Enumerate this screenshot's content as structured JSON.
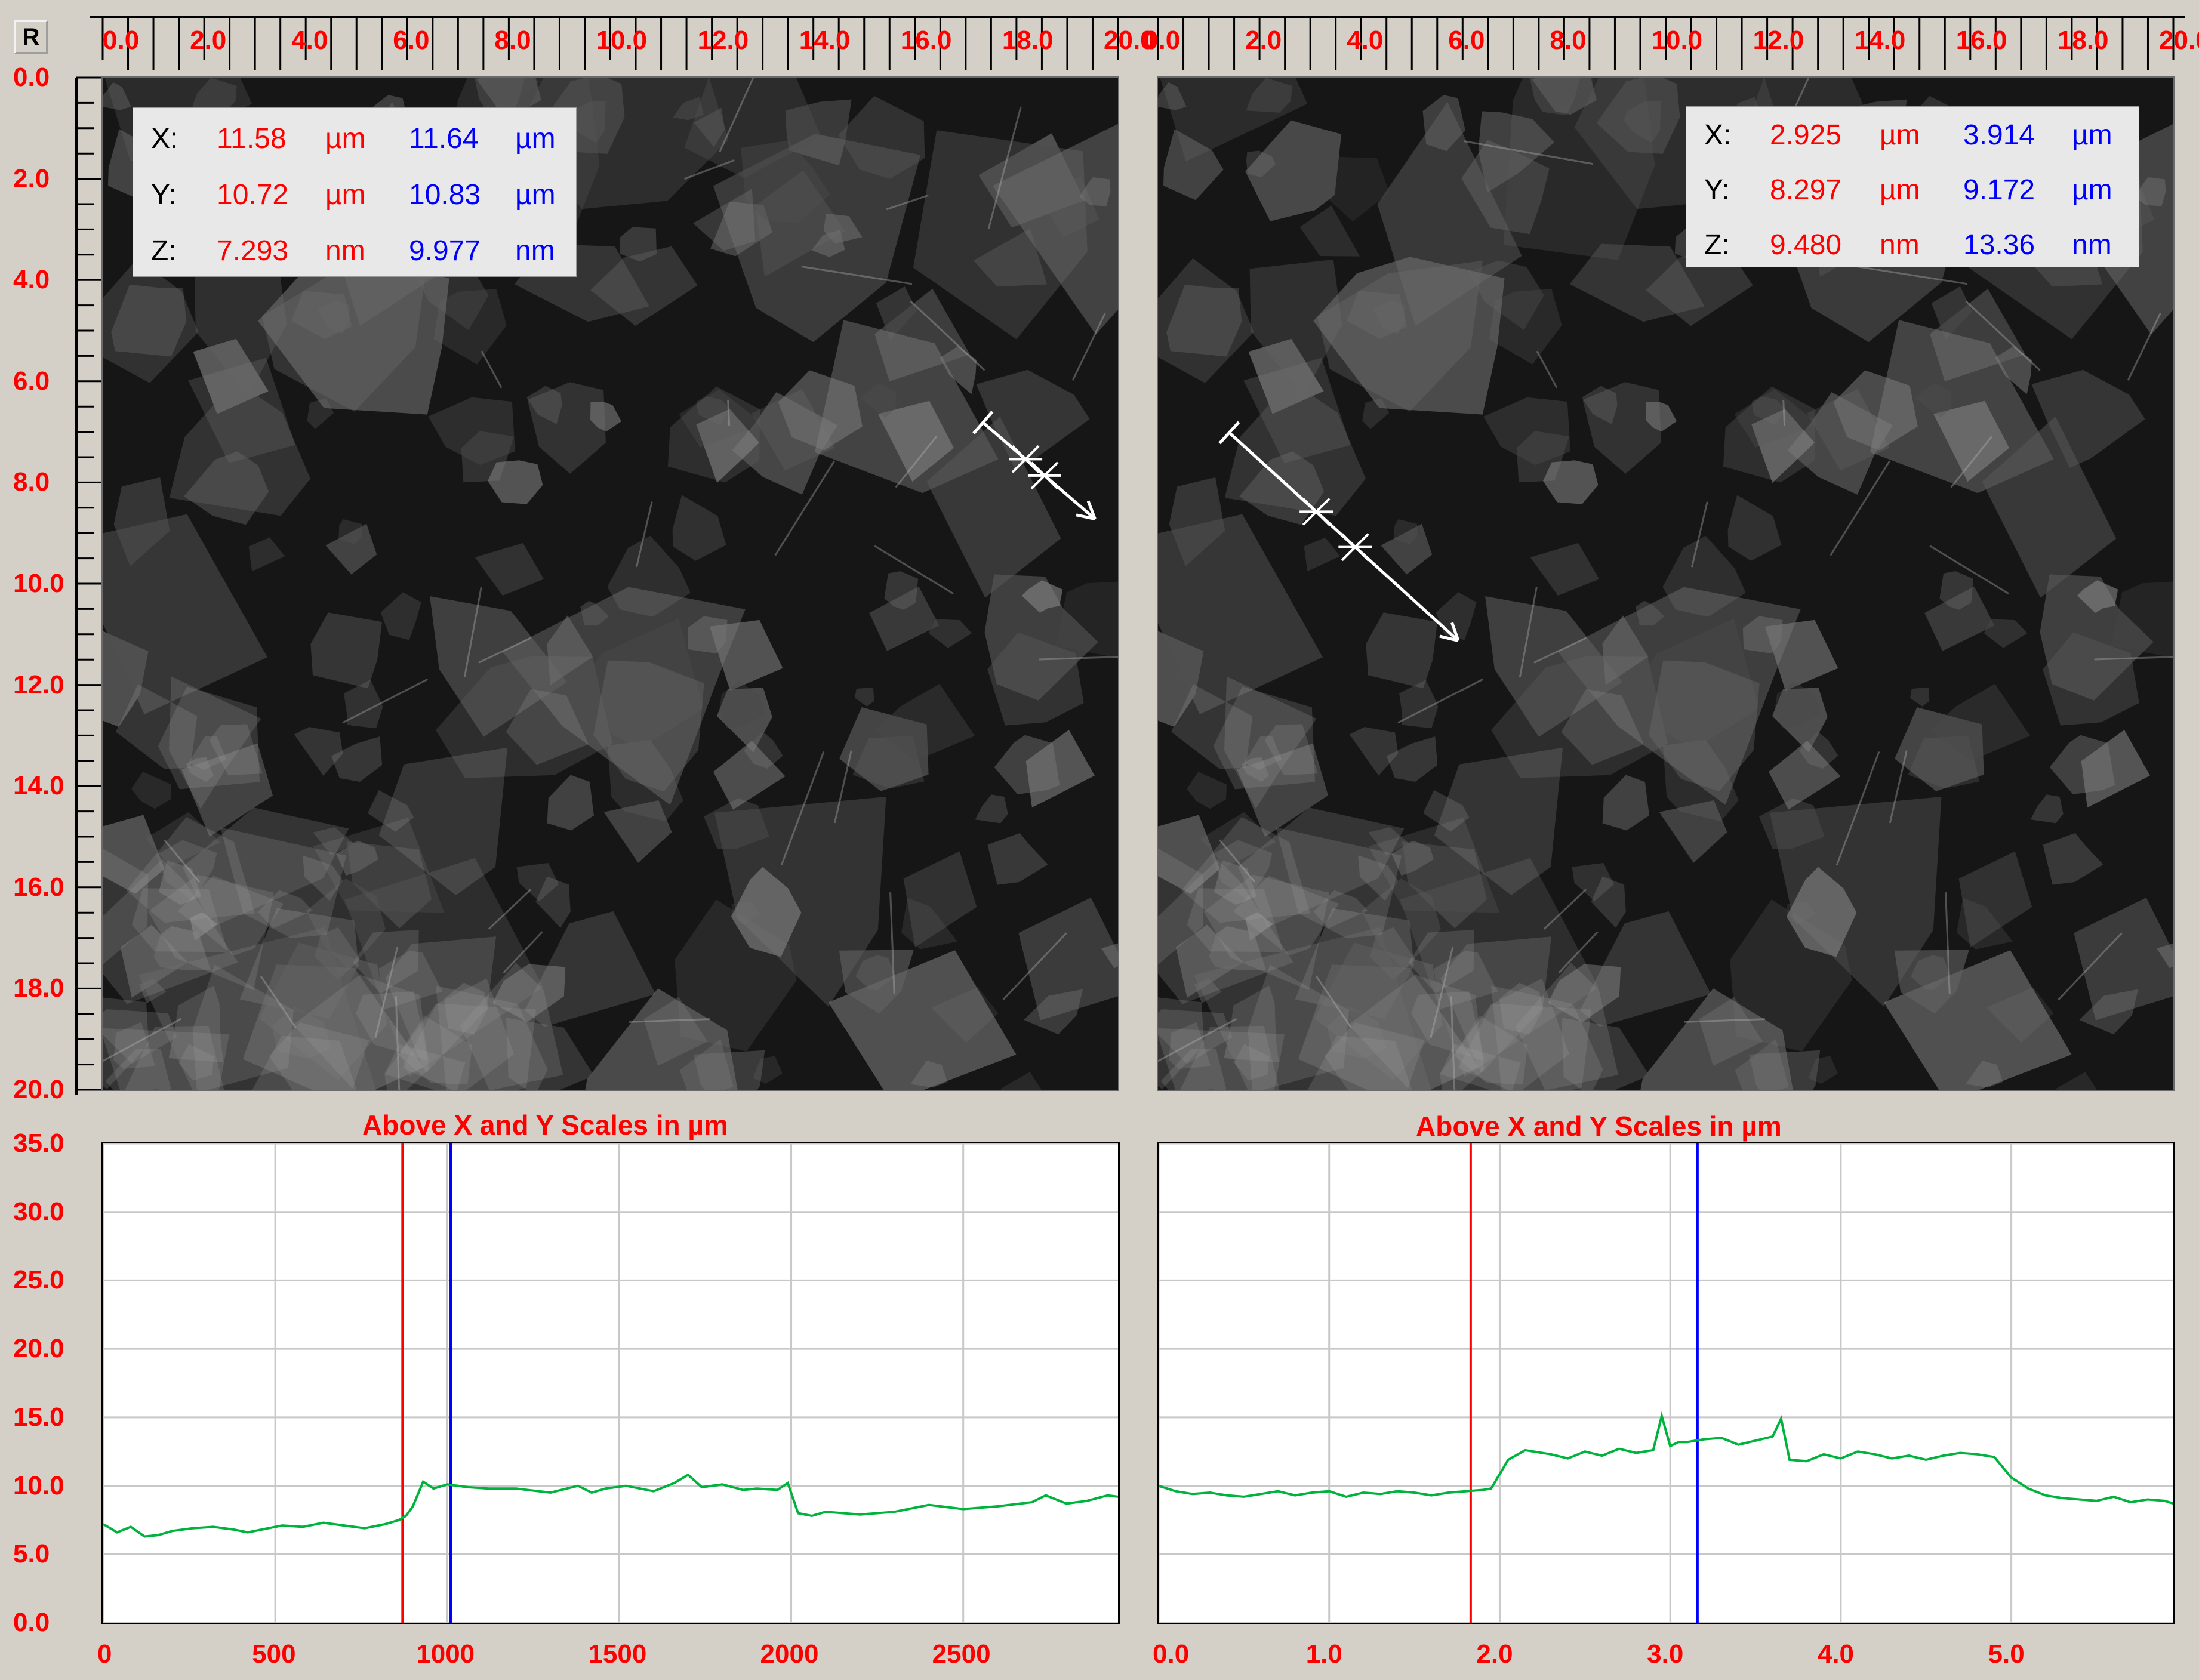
{
  "toolbar": {
    "r_button": "R"
  },
  "image_axis": {
    "ticks": [
      "0.0",
      "2.0",
      "4.0",
      "6.0",
      "8.0",
      "10.0",
      "12.0",
      "14.0",
      "16.0",
      "18.0",
      "20.0"
    ],
    "range_um": [
      0,
      20
    ]
  },
  "left_panel": {
    "readout": {
      "x": {
        "label": "X:",
        "v1": "11.58",
        "u1": "µm",
        "v2": "11.64",
        "u2": "µm"
      },
      "y": {
        "label": "Y:",
        "v1": "10.72",
        "u1": "µm",
        "v2": "10.83",
        "u2": "µm"
      },
      "z": {
        "label": "Z:",
        "v1": "7.293",
        "u1": "nm",
        "v2": "9.977",
        "u2": "nm"
      }
    },
    "profile_line_um": {
      "start": [
        17.3,
        6.8
      ],
      "end": [
        19.5,
        8.7
      ]
    },
    "plot_title": "Above X and Y Scales in µm"
  },
  "right_panel": {
    "readout": {
      "x": {
        "label": "X:",
        "v1": "2.925",
        "u1": "µm",
        "v2": "3.914",
        "u2": "µm"
      },
      "y": {
        "label": "Y:",
        "v1": "8.297",
        "u1": "µm",
        "v2": "9.172",
        "u2": "µm"
      },
      "z": {
        "label": "Z:",
        "v1": "9.480",
        "u1": "nm",
        "v2": "13.36",
        "u2": "nm"
      }
    },
    "profile_line_um": {
      "start": [
        1.4,
        7.0
      ],
      "end": [
        5.9,
        11.1
      ]
    },
    "plot_title": "Above X and Y Scales in µm"
  },
  "colors": {
    "tick_red": "#ff0000",
    "cursor_red": "#ff0000",
    "cursor_blue": "#0000ff",
    "profile_green": "#00b33c",
    "grid": "#c8c8c8"
  },
  "chart_data": [
    {
      "type": "line",
      "title": "Above X and Y Scales in µm",
      "xlabel": "",
      "ylabel": "",
      "xlim": [
        0,
        2950
      ],
      "ylim": [
        0,
        35
      ],
      "x_ticks": [
        "0",
        "500",
        "1000",
        "1500",
        "2000",
        "2500"
      ],
      "x_tick_values": [
        0,
        500,
        1000,
        1500,
        2000,
        2500
      ],
      "y_ticks": [
        "0.0",
        "5.0",
        "10.0",
        "15.0",
        "20.0",
        "25.0",
        "30.0",
        "35.0"
      ],
      "y_tick_values": [
        0,
        5,
        10,
        15,
        20,
        25,
        30,
        35
      ],
      "grid": true,
      "cursors": {
        "red_x": 870,
        "blue_x": 1010
      },
      "series": [
        {
          "x": [
            0,
            40,
            80,
            120,
            160,
            200,
            260,
            320,
            380,
            420,
            460,
            520,
            580,
            640,
            700,
            760,
            820,
            860,
            880,
            900,
            930,
            960,
            1000,
            1060,
            1120,
            1200,
            1300,
            1380,
            1420,
            1460,
            1520,
            1600,
            1660,
            1700,
            1740,
            1800,
            1860,
            1900,
            1960,
            1990,
            2020,
            2060,
            2100,
            2200,
            2300,
            2400,
            2500,
            2600,
            2700,
            2740,
            2800,
            2860,
            2920,
            2950
          ],
          "y": [
            7.2,
            6.6,
            7.0,
            6.3,
            6.4,
            6.7,
            6.9,
            7.0,
            6.8,
            6.6,
            6.8,
            7.1,
            7.0,
            7.3,
            7.1,
            6.9,
            7.2,
            7.5,
            7.8,
            8.5,
            10.3,
            9.8,
            10.1,
            9.9,
            9.8,
            9.8,
            9.5,
            10.0,
            9.5,
            9.8,
            10.0,
            9.6,
            10.2,
            10.8,
            9.9,
            10.1,
            9.7,
            9.8,
            9.7,
            10.2,
            8.0,
            7.8,
            8.1,
            7.9,
            8.1,
            8.6,
            8.3,
            8.5,
            8.8,
            9.3,
            8.7,
            8.9,
            9.3,
            9.2
          ]
        }
      ]
    },
    {
      "type": "line",
      "title": "Above X and Y Scales in µm",
      "xlabel": "",
      "ylabel": "",
      "xlim": [
        0,
        5.95
      ],
      "ylim": [
        0,
        35
      ],
      "x_ticks": [
        "0.0",
        "1.0",
        "2.0",
        "3.0",
        "4.0",
        "5.0"
      ],
      "x_tick_values": [
        0,
        1,
        2,
        3,
        4,
        5
      ],
      "y_ticks": [
        "0.0",
        "5.0",
        "10.0",
        "15.0",
        "20.0",
        "25.0",
        "30.0",
        "35.0"
      ],
      "y_tick_values": [
        0,
        5,
        10,
        15,
        20,
        25,
        30,
        35
      ],
      "grid": true,
      "cursors": {
        "red_x": 1.83,
        "blue_x": 3.16
      },
      "series": [
        {
          "x": [
            0,
            0.1,
            0.2,
            0.3,
            0.4,
            0.5,
            0.6,
            0.7,
            0.8,
            0.9,
            1.0,
            1.1,
            1.2,
            1.3,
            1.4,
            1.5,
            1.6,
            1.7,
            1.8,
            1.9,
            1.95,
            2.05,
            2.15,
            2.3,
            2.4,
            2.5,
            2.6,
            2.7,
            2.8,
            2.9,
            2.95,
            3.0,
            3.05,
            3.1,
            3.2,
            3.3,
            3.4,
            3.5,
            3.6,
            3.65,
            3.7,
            3.8,
            3.9,
            4.0,
            4.1,
            4.2,
            4.3,
            4.4,
            4.5,
            4.6,
            4.7,
            4.8,
            4.9,
            5.0,
            5.1,
            5.2,
            5.3,
            5.4,
            5.5,
            5.6,
            5.7,
            5.8,
            5.9,
            5.95
          ],
          "y": [
            10.0,
            9.6,
            9.4,
            9.5,
            9.3,
            9.2,
            9.4,
            9.6,
            9.3,
            9.5,
            9.6,
            9.2,
            9.5,
            9.4,
            9.6,
            9.5,
            9.3,
            9.5,
            9.6,
            9.7,
            9.8,
            11.9,
            12.6,
            12.3,
            12.0,
            12.5,
            12.2,
            12.7,
            12.4,
            12.6,
            15.1,
            12.9,
            13.2,
            13.2,
            13.4,
            13.5,
            13.0,
            13.3,
            13.6,
            14.9,
            11.9,
            11.8,
            12.3,
            12.0,
            12.5,
            12.3,
            12.0,
            12.2,
            11.9,
            12.2,
            12.4,
            12.3,
            12.1,
            10.6,
            9.8,
            9.3,
            9.1,
            9.0,
            8.9,
            9.2,
            8.8,
            9.0,
            8.9,
            8.7
          ]
        }
      ]
    }
  ]
}
